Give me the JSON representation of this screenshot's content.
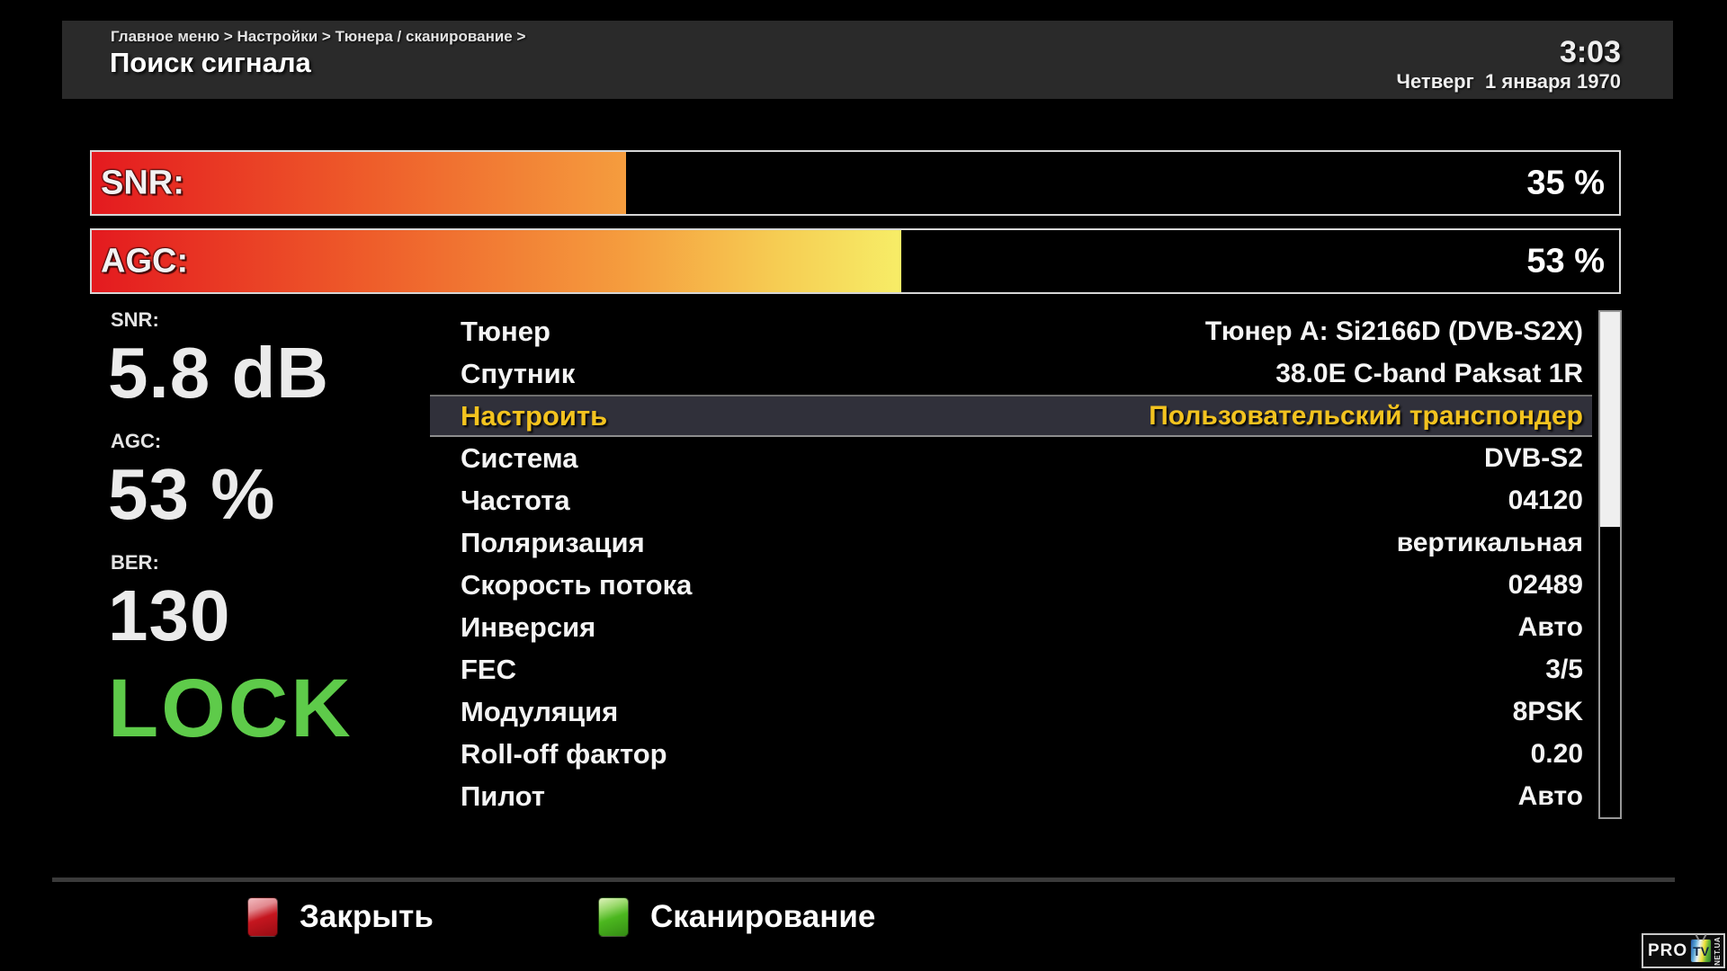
{
  "header": {
    "breadcrumb": "Главное меню > Настройки > Тюнера / сканирование >",
    "title": "Поиск сигнала",
    "clock": "3:03",
    "date": "Четверг  1 января 1970"
  },
  "signal_bars": [
    {
      "label": "SNR:",
      "percent": 35,
      "percent_label": "35 %"
    },
    {
      "label": "AGC:",
      "percent": 53,
      "percent_label": "53 %"
    }
  ],
  "signal_stats": [
    {
      "label": "SNR:",
      "value": "5.8 dB"
    },
    {
      "label": "AGC:",
      "value": "53 %"
    },
    {
      "label": "BER:",
      "value": "130"
    }
  ],
  "lock_status": "LOCK",
  "tuner_menu": {
    "items": [
      {
        "label": "Тюнер",
        "value": "Тюнер A: Si2166D (DVB-S2X)",
        "selected": false
      },
      {
        "label": "Спутник",
        "value": "38.0E C-band Paksat 1R",
        "selected": false
      },
      {
        "label": "Настроить",
        "value": "Пользовательский транспондер",
        "selected": true
      },
      {
        "label": "Система",
        "value": "DVB-S2",
        "selected": false
      },
      {
        "label": "Частота",
        "value": "04120",
        "selected": false
      },
      {
        "label": "Поляризация",
        "value": "вертикальная",
        "selected": false
      },
      {
        "label": "Скорость потока",
        "value": "02489",
        "selected": false
      },
      {
        "label": "Инверсия",
        "value": "Авто",
        "selected": false
      },
      {
        "label": "FEC",
        "value": "3/5",
        "selected": false
      },
      {
        "label": "Модуляция",
        "value": "8PSK",
        "selected": false
      },
      {
        "label": "Roll-off фактор",
        "value": "0.20",
        "selected": false
      },
      {
        "label": "Пилот",
        "value": "Авто",
        "selected": false
      }
    ],
    "scrollbar_thumb_percent": 42.5
  },
  "footer": {
    "close_button": {
      "label": "Закрыть",
      "key_color": "#c5161f"
    },
    "scan_button": {
      "label": "Сканирование",
      "key_color": "#4cb71f"
    }
  },
  "watermark": {
    "brand": "PRO",
    "tv_label": "TV",
    "suffix": "NET.UA"
  },
  "colors": {
    "header_bg": "#2a2a2a",
    "highlight_text": "#f3c31f",
    "highlight_bg": "#30303a",
    "lock_green": "#5ecb4a",
    "bar_gradient_start": "#e41a1f",
    "bar_gradient_mid": "#f59d3e",
    "bar_gradient_end": "#f7f56c"
  }
}
